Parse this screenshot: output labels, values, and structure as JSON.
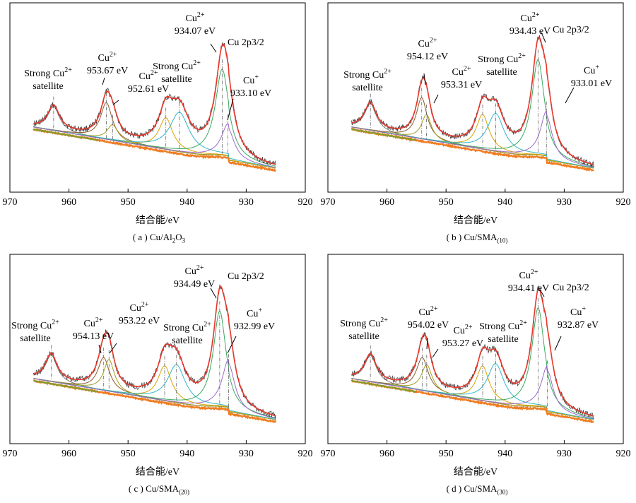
{
  "figure": {
    "panels": [
      {
        "caption_main": "( a ) Cu/Al",
        "caption_sub1": "2",
        "caption_mid": "O",
        "caption_sub2": "3",
        "caption_end": "",
        "xlabel": "结合能/eV"
      },
      {
        "caption_main": "( b ) Cu/SMA",
        "caption_sub1": "(10)",
        "caption_mid": "",
        "caption_sub2": "",
        "caption_end": "",
        "xlabel": "结合能/eV"
      },
      {
        "caption_main": "( c ) Cu/SMA",
        "caption_sub1": "(20)",
        "caption_mid": "",
        "caption_sub2": "",
        "caption_end": "",
        "xlabel": "结合能/eV"
      },
      {
        "caption_main": "( d ) Cu/SMA",
        "caption_sub1": "(30)",
        "caption_mid": "",
        "caption_sub2": "",
        "caption_end": "",
        "xlabel": "结合能/eV"
      }
    ]
  },
  "chart_data": [
    {
      "type": "line",
      "title": "( a ) Cu/Al2O3",
      "xlabel": "结合能/eV",
      "ylabel": "",
      "xlim": [
        970,
        920
      ],
      "xticks": [
        970,
        960,
        950,
        940,
        930,
        920
      ],
      "x_reversed": true,
      "series_colors": {
        "raw": "#333333",
        "envelope": "#e8372a",
        "background": "#ef7d22",
        "cu2_main": "#3aa860",
        "cu_plus": "#9b6ac8",
        "satellite_a": "#d9a300",
        "satellite_b": "#2fb6c8",
        "cu2_954": "#8b5a2b",
        "cu2_953": "#a0a020",
        "sat_963": "#7c7c7c"
      },
      "peaks": [
        {
          "name": "Strong Cu2+ satellite",
          "center": 962.6,
          "height": 38,
          "width": 1.2,
          "color": "#7c7c7c"
        },
        {
          "name": "Cu2+ 953.67 eV",
          "center": 953.67,
          "height": 58,
          "width": 1.2,
          "color": "#8b5a2b"
        },
        {
          "name": "Cu2+ 952.61 eV",
          "center": 952.61,
          "height": 25,
          "width": 1.1,
          "color": "#a0a020"
        },
        {
          "name": "Strong Cu2+ satellite",
          "center": 943.6,
          "height": 50,
          "width": 1.4,
          "color": "#d9a300"
        },
        {
          "name": "Strong Cu2+ satellite",
          "center": 941.3,
          "height": 62,
          "width": 2.0,
          "color": "#2fb6c8"
        },
        {
          "name": "Cu2+ 934.07 eV",
          "center": 934.07,
          "height": 135,
          "width": 1.4,
          "color": "#3aa860"
        },
        {
          "name": "Cu+ 933.10 eV",
          "center": 933.1,
          "height": 50,
          "width": 1.3,
          "color": "#9b6ac8"
        }
      ],
      "annotations": [
        {
          "l1": "Cu",
          "sup": "2+",
          "l2": "934.07 eV"
        },
        {
          "l1": "Cu 2p3/2",
          "sup": "",
          "l2": ""
        },
        {
          "l1": "Cu",
          "sup": "+",
          "l2": "933.10 eV"
        },
        {
          "l1": "Cu",
          "sup": "2+",
          "l2": "953.67 eV"
        },
        {
          "l1": "Cu",
          "sup": "2+",
          "l2": "952.61 eV"
        },
        {
          "l1": "Strong Cu",
          "sup": "2+",
          "l2": "satellite"
        },
        {
          "l1": "Strong Cu",
          "sup": "2+",
          "l2": "satellite"
        }
      ]
    },
    {
      "type": "line",
      "title": "( b ) Cu/SMA(10)",
      "xlabel": "结合能/eV",
      "ylabel": "",
      "xlim": [
        970,
        920
      ],
      "xticks": [
        970,
        960,
        950,
        940,
        930,
        920
      ],
      "x_reversed": true,
      "peaks": [
        {
          "name": "Strong Cu2+ satellite",
          "center": 962.8,
          "height": 42,
          "width": 1.2,
          "color": "#7c7c7c"
        },
        {
          "name": "Cu2+ 954.12 eV",
          "center": 954.12,
          "height": 65,
          "width": 1.1,
          "color": "#8b5a2b"
        },
        {
          "name": "Cu2+ 953.31 eV",
          "center": 953.31,
          "height": 40,
          "width": 1.0,
          "color": "#a0a020"
        },
        {
          "name": "Strong Cu2+ satellite",
          "center": 943.8,
          "height": 55,
          "width": 1.3,
          "color": "#d9a300"
        },
        {
          "name": "Strong Cu2+ satellite",
          "center": 941.6,
          "height": 60,
          "width": 1.7,
          "color": "#2fb6c8"
        },
        {
          "name": "Cu2+ 934.43 eV",
          "center": 934.43,
          "height": 150,
          "width": 1.3,
          "color": "#3aa860"
        },
        {
          "name": "Cu+ 933.01 eV",
          "center": 933.01,
          "height": 70,
          "width": 1.2,
          "color": "#9b6ac8"
        }
      ],
      "annotations": [
        {
          "l1": "Cu",
          "sup": "2+",
          "l2": "934.43 eV"
        },
        {
          "l1": "Cu 2p3/2",
          "sup": "",
          "l2": ""
        },
        {
          "l1": "Cu",
          "sup": "+",
          "l2": "933.01 eV"
        },
        {
          "l1": "Cu",
          "sup": "2+",
          "l2": "954.12 eV"
        },
        {
          "l1": "Cu",
          "sup": "2+",
          "l2": "953.31 eV"
        },
        {
          "l1": "Strong Cu",
          "sup": "2+",
          "l2": "satellite"
        },
        {
          "l1": "Strong Cu",
          "sup": "2+",
          "l2": "satellite"
        }
      ]
    },
    {
      "type": "line",
      "title": "( c ) Cu/SMA(20)",
      "xlabel": "结合能/eV",
      "ylabel": "",
      "xlim": [
        970,
        920
      ],
      "xticks": [
        970,
        960,
        950,
        940,
        930,
        920
      ],
      "x_reversed": true,
      "peaks": [
        {
          "name": "Strong Cu2+ satellite",
          "center": 963.0,
          "height": 42,
          "width": 1.2,
          "color": "#7c7c7c"
        },
        {
          "name": "Cu2+ 954.13 eV",
          "center": 954.13,
          "height": 52,
          "width": 1.2,
          "color": "#8b5a2b"
        },
        {
          "name": "Cu2+ 953.22 eV",
          "center": 953.22,
          "height": 50,
          "width": 1.1,
          "color": "#a0a020"
        },
        {
          "name": "Strong Cu2+ satellite",
          "center": 943.8,
          "height": 55,
          "width": 1.4,
          "color": "#d9a300"
        },
        {
          "name": "Strong Cu2+ satellite",
          "center": 941.8,
          "height": 60,
          "width": 1.8,
          "color": "#2fb6c8"
        },
        {
          "name": "Cu2+ 934.49 eV",
          "center": 934.49,
          "height": 150,
          "width": 1.3,
          "color": "#3aa860"
        },
        {
          "name": "Cu+ 932.99 eV",
          "center": 932.99,
          "height": 75,
          "width": 1.3,
          "color": "#9b6ac8"
        }
      ],
      "annotations": [
        {
          "l1": "Cu",
          "sup": "2+",
          "l2": "934.49 eV"
        },
        {
          "l1": "Cu 2p3/2",
          "sup": "",
          "l2": ""
        },
        {
          "l1": "Cu",
          "sup": "+",
          "l2": "932.99 eV"
        },
        {
          "l1": "Cu",
          "sup": "2+",
          "l2": "954.13 eV"
        },
        {
          "l1": "Cu",
          "sup": "2+",
          "l2": "953.22 eV"
        },
        {
          "l1": "Strong Cu",
          "sup": "2+",
          "l2": "satellite"
        },
        {
          "l1": "Strong Cu",
          "sup": "2+",
          "l2": "satellite"
        }
      ]
    },
    {
      "type": "line",
      "title": "( d ) Cu/SMA(30)",
      "xlabel": "结合能/eV",
      "ylabel": "",
      "xlim": [
        970,
        920
      ],
      "xticks": [
        970,
        960,
        950,
        940,
        930,
        920
      ],
      "x_reversed": true,
      "peaks": [
        {
          "name": "Strong Cu2+ satellite",
          "center": 962.8,
          "height": 42,
          "width": 1.2,
          "color": "#7c7c7c"
        },
        {
          "name": "Cu2+ 954.02 eV",
          "center": 954.02,
          "height": 52,
          "width": 1.2,
          "color": "#8b5a2b"
        },
        {
          "name": "Cu2+ 953.27 eV",
          "center": 953.27,
          "height": 42,
          "width": 1.1,
          "color": "#a0a020"
        },
        {
          "name": "Strong Cu2+ satellite",
          "center": 943.8,
          "height": 55,
          "width": 1.3,
          "color": "#d9a300"
        },
        {
          "name": "Strong Cu2+ satellite",
          "center": 941.6,
          "height": 62,
          "width": 1.7,
          "color": "#2fb6c8"
        },
        {
          "name": "Cu2+ 934.41 eV",
          "center": 934.41,
          "height": 155,
          "width": 1.3,
          "color": "#3aa860"
        },
        {
          "name": "Cu+ 932.87 eV",
          "center": 932.87,
          "height": 65,
          "width": 1.2,
          "color": "#9b6ac8"
        }
      ],
      "annotations": [
        {
          "l1": "Cu",
          "sup": "2+",
          "l2": "934.41 eV"
        },
        {
          "l1": "Cu 2p3/2",
          "sup": "",
          "l2": ""
        },
        {
          "l1": "Cu",
          "sup": "+",
          "l2": "932.87 eV"
        },
        {
          "l1": "Cu",
          "sup": "2+",
          "l2": "954.02 eV"
        },
        {
          "l1": "Cu",
          "sup": "2+",
          "l2": "953.27 eV"
        },
        {
          "l1": "Strong Cu",
          "sup": "2+",
          "l2": "satellite"
        },
        {
          "l1": "Strong Cu",
          "sup": "2+",
          "l2": "satellite"
        }
      ]
    }
  ]
}
